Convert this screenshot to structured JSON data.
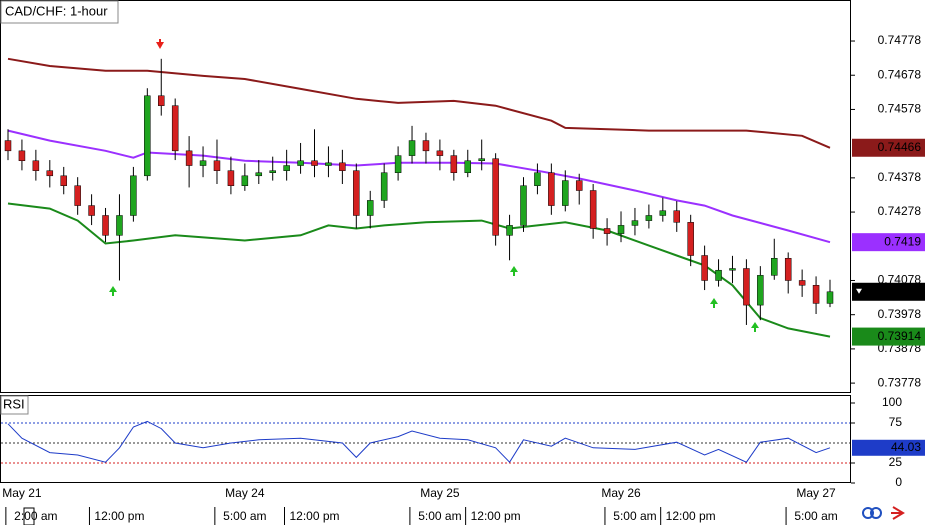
{
  "chart_data": {
    "type": "candlestick",
    "title": "CAD/CHF: 1-hour",
    "dates": [
      null,
      "May 21",
      null,
      null,
      null,
      null,
      null,
      null,
      null,
      null,
      null,
      null,
      null,
      null,
      null,
      null,
      null,
      "May 24",
      null,
      null,
      null,
      null,
      null,
      null,
      null,
      null,
      null,
      null,
      null,
      null,
      null,
      "May 25",
      null,
      null,
      null,
      null,
      null,
      null,
      null,
      null,
      null,
      null,
      null,
      null,
      "May 26",
      null,
      null,
      null,
      null,
      null,
      null,
      null,
      null,
      null,
      null,
      null,
      null,
      null,
      "May 27",
      null
    ],
    "times": [
      null,
      null,
      "2:00 am",
      null,
      null,
      null,
      null,
      null,
      "12:00 pm",
      null,
      null,
      null,
      null,
      null,
      null,
      null,
      null,
      "5:00 am",
      null,
      null,
      null,
      null,
      "12:00 pm",
      null,
      null,
      null,
      null,
      null,
      null,
      null,
      null,
      "5:00 am",
      null,
      null,
      null,
      "12:00 pm",
      null,
      null,
      null,
      null,
      null,
      null,
      null,
      null,
      null,
      "5:00 am",
      null,
      null,
      null,
      "12:00 pm",
      null,
      null,
      null,
      null,
      null,
      null,
      null,
      null,
      "5:00 am",
      null
    ],
    "open": [
      0.74487,
      0.74457,
      0.74428,
      0.74399,
      0.74384,
      0.74355,
      0.74297,
      0.74268,
      0.7421,
      0.74268,
      0.74384,
      0.74618,
      0.74589,
      0.74457,
      0.74414,
      0.74428,
      0.74399,
      0.74355,
      0.74384,
      0.74393,
      0.74399,
      0.74414,
      0.74428,
      0.74414,
      0.74422,
      0.74399,
      0.74268,
      0.74312,
      0.74393,
      0.74443,
      0.74487,
      0.74457,
      0.74443,
      0.74393,
      0.74428,
      0.74434,
      0.7421,
      0.74239,
      0.74355,
      0.74393,
      0.74297,
      0.7437,
      0.74341,
      0.7423,
      0.74215,
      0.74239,
      0.74253,
      0.74268,
      0.74282,
      0.74248,
      0.74151,
      0.74078,
      0.74108,
      0.74113,
      0.74006,
      0.74093,
      0.74143,
      0.74078,
      0.74064,
      0.74011
    ],
    "high": [
      0.7452,
      0.7449,
      0.7446,
      0.7443,
      0.7441,
      0.7438,
      0.7433,
      0.7429,
      0.7433,
      0.7441,
      0.7464,
      0.74726,
      0.7461,
      0.745,
      0.7447,
      0.7449,
      0.7444,
      0.7442,
      0.7443,
      0.7444,
      0.7446,
      0.7448,
      0.7452,
      0.7447,
      0.7446,
      0.7442,
      0.7434,
      0.7442,
      0.7447,
      0.7453,
      0.7451,
      0.7449,
      0.7446,
      0.7446,
      0.7449,
      0.7445,
      0.7427,
      0.7438,
      0.7442,
      0.7442,
      0.744,
      0.7439,
      0.7436,
      0.7426,
      0.7428,
      0.7429,
      0.743,
      0.7432,
      0.7431,
      0.7427,
      0.7418,
      0.7414,
      0.7415,
      0.7414,
      0.7412,
      0.742,
      0.7416,
      0.7411,
      0.7409,
      0.7408
    ],
    "low": [
      0.7443,
      0.744,
      0.7437,
      0.7435,
      0.7433,
      0.7427,
      0.7424,
      0.7419,
      0.74078,
      0.7425,
      0.7437,
      0.7456,
      0.7443,
      0.7435,
      0.7438,
      0.7436,
      0.7433,
      0.7434,
      0.7436,
      0.7437,
      0.7437,
      0.7439,
      0.7438,
      0.7438,
      0.7436,
      0.7423,
      0.7423,
      0.7429,
      0.7437,
      0.7442,
      0.7442,
      0.744,
      0.7437,
      0.7438,
      0.744,
      0.7418,
      0.74137,
      0.7422,
      0.7433,
      0.7427,
      0.7428,
      0.743,
      0.742,
      0.7418,
      0.7419,
      0.7421,
      0.7423,
      0.7425,
      0.7422,
      0.7412,
      0.7405,
      0.7406,
      0.7407,
      0.73948,
      0.73962,
      0.7408,
      0.7404,
      0.7403,
      0.7398,
      0.74
    ],
    "close": [
      0.74457,
      0.74428,
      0.74399,
      0.74384,
      0.74355,
      0.74297,
      0.74268,
      0.7421,
      0.74268,
      0.74384,
      0.74618,
      0.74589,
      0.74457,
      0.74414,
      0.74428,
      0.74399,
      0.74355,
      0.74384,
      0.74393,
      0.74399,
      0.74414,
      0.74428,
      0.74414,
      0.74422,
      0.74399,
      0.74268,
      0.74312,
      0.74393,
      0.74443,
      0.74487,
      0.74457,
      0.74443,
      0.74393,
      0.74428,
      0.74434,
      0.7421,
      0.74239,
      0.74355,
      0.74393,
      0.74297,
      0.7437,
      0.74341,
      0.7423,
      0.74215,
      0.74239,
      0.74253,
      0.74268,
      0.74282,
      0.74248,
      0.74151,
      0.74078,
      0.74108,
      0.74113,
      0.74006,
      0.74093,
      0.74143,
      0.74078,
      0.74064,
      0.74011,
      0.74045
    ],
    "up_color": "#1fa51f",
    "down_color": "#d42020",
    "ylim": [
      0.73752,
      0.74895
    ],
    "yticks": [
      0.74778,
      0.74678,
      0.74578,
      0.74378,
      0.74278,
      0.74078,
      0.73978,
      0.73878,
      0.73778
    ],
    "bands": [
      {
        "color": "#8b1a1a",
        "x": [
          0,
          3,
          7,
          10,
          14,
          17,
          21,
          25,
          28,
          32,
          35,
          39,
          40,
          46,
          53,
          57,
          59
        ],
        "values": [
          0.74726,
          0.74705,
          0.74691,
          0.74691,
          0.74676,
          0.74667,
          0.74638,
          0.74609,
          0.74597,
          0.74603,
          0.74589,
          0.74545,
          0.74524,
          0.74516,
          0.74516,
          0.74501,
          0.74466
        ]
      },
      {
        "color": "#9b30ff",
        "x": [
          0,
          3,
          7,
          9,
          10,
          14,
          17,
          21,
          25,
          28,
          32,
          35,
          38,
          41,
          45,
          48,
          50,
          52,
          56,
          59
        ],
        "values": [
          0.74516,
          0.74487,
          0.74457,
          0.74437,
          0.74452,
          0.74443,
          0.74428,
          0.74422,
          0.74414,
          0.74422,
          0.74422,
          0.7442,
          0.74399,
          0.74376,
          0.74341,
          0.74312,
          0.74297,
          0.74268,
          0.74224,
          0.7419
        ]
      },
      {
        "color": "#1a8a1a",
        "x": [
          0,
          3,
          5,
          7,
          9,
          12,
          17,
          21,
          23,
          25,
          27,
          30,
          34,
          36,
          38,
          40,
          43,
          46,
          48,
          50,
          52,
          54,
          56,
          59
        ],
        "values": [
          0.74303,
          0.74288,
          0.74253,
          0.74186,
          0.74195,
          0.7421,
          0.74195,
          0.7421,
          0.74239,
          0.7423,
          0.74239,
          0.74248,
          0.74253,
          0.7423,
          0.74239,
          0.74248,
          0.74224,
          0.7418,
          0.74151,
          0.74122,
          0.74064,
          0.73968,
          0.73938,
          0.73914
        ]
      }
    ],
    "price_tags": [
      {
        "value": 0.74466,
        "color": "#8b1a1a"
      },
      {
        "value": 0.7419,
        "color": "#9b30ff"
      },
      {
        "value": 0.74045,
        "color": "#000000"
      },
      {
        "value": 0.73914,
        "color": "#1a8a1a"
      }
    ],
    "rsi": {
      "label": "RSI",
      "color": "#1e3cc8",
      "x": [
        0,
        1,
        3,
        5,
        7,
        8,
        9,
        10,
        11,
        12,
        14,
        16,
        18,
        21,
        24,
        25,
        26,
        28,
        29,
        31,
        33,
        35,
        36,
        37,
        39,
        40,
        42,
        45,
        48,
        50,
        51,
        53,
        54,
        56,
        58,
        59
      ],
      "values": [
        74,
        56,
        38,
        35,
        26,
        44,
        70,
        77,
        68,
        50,
        44,
        50,
        54,
        56,
        50,
        32,
        50,
        58,
        65,
        56,
        54,
        44,
        26,
        54,
        46,
        56,
        44,
        42,
        51,
        35,
        42,
        26,
        51,
        56,
        38,
        44.03
      ],
      "ylim": [
        0,
        108.75
      ],
      "yticks": [
        100,
        75,
        25,
        0
      ],
      "levels": [
        {
          "value": 75,
          "color": "#1e3cc8"
        },
        {
          "value": 50,
          "color": "#333333"
        },
        {
          "value": 25,
          "color": "#d42020"
        }
      ],
      "tag": {
        "value": 44.03,
        "color": "#1e3cc8"
      }
    }
  }
}
